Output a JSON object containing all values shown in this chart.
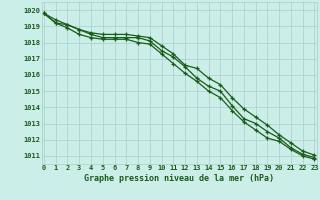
{
  "title": "Graphe pression niveau de la mer (hPa)",
  "background_color": "#cceee8",
  "grid_color": "#aacccc",
  "line_color": "#1a5c1a",
  "xlim": [
    -0.2,
    23.2
  ],
  "ylim": [
    1010.5,
    1020.5
  ],
  "yticks": [
    1011,
    1012,
    1013,
    1014,
    1015,
    1016,
    1017,
    1018,
    1019,
    1020
  ],
  "xticks": [
    0,
    1,
    2,
    3,
    4,
    5,
    6,
    7,
    8,
    9,
    10,
    11,
    12,
    13,
    14,
    15,
    16,
    17,
    18,
    19,
    20,
    21,
    22,
    23
  ],
  "x": [
    0,
    1,
    2,
    3,
    4,
    5,
    6,
    7,
    8,
    9,
    10,
    11,
    12,
    13,
    14,
    15,
    16,
    17,
    18,
    19,
    20,
    21,
    22,
    23
  ],
  "line1": [
    1019.8,
    1019.2,
    1019.1,
    1018.8,
    1018.5,
    1018.3,
    1018.3,
    1018.3,
    1018.3,
    1018.1,
    1017.5,
    1017.1,
    1016.5,
    1015.8,
    1015.3,
    1015.0,
    1014.1,
    1013.3,
    1013.0,
    1012.5,
    1012.1,
    1011.5,
    1011.1,
    1010.9
  ],
  "line2": [
    1019.8,
    1019.4,
    1019.1,
    1018.8,
    1018.6,
    1018.5,
    1018.5,
    1018.5,
    1018.4,
    1018.3,
    1017.8,
    1017.3,
    1016.6,
    1016.4,
    1015.8,
    1015.4,
    1014.6,
    1013.9,
    1013.4,
    1012.9,
    1012.3,
    1011.8,
    1011.3,
    1011.05
  ],
  "line3": [
    1019.8,
    1019.2,
    1018.9,
    1018.5,
    1018.3,
    1018.2,
    1018.2,
    1018.2,
    1018.0,
    1017.9,
    1017.3,
    1016.7,
    1016.1,
    1015.6,
    1015.0,
    1014.6,
    1013.8,
    1013.1,
    1012.6,
    1012.1,
    1011.9,
    1011.4,
    1011.0,
    1010.8
  ]
}
